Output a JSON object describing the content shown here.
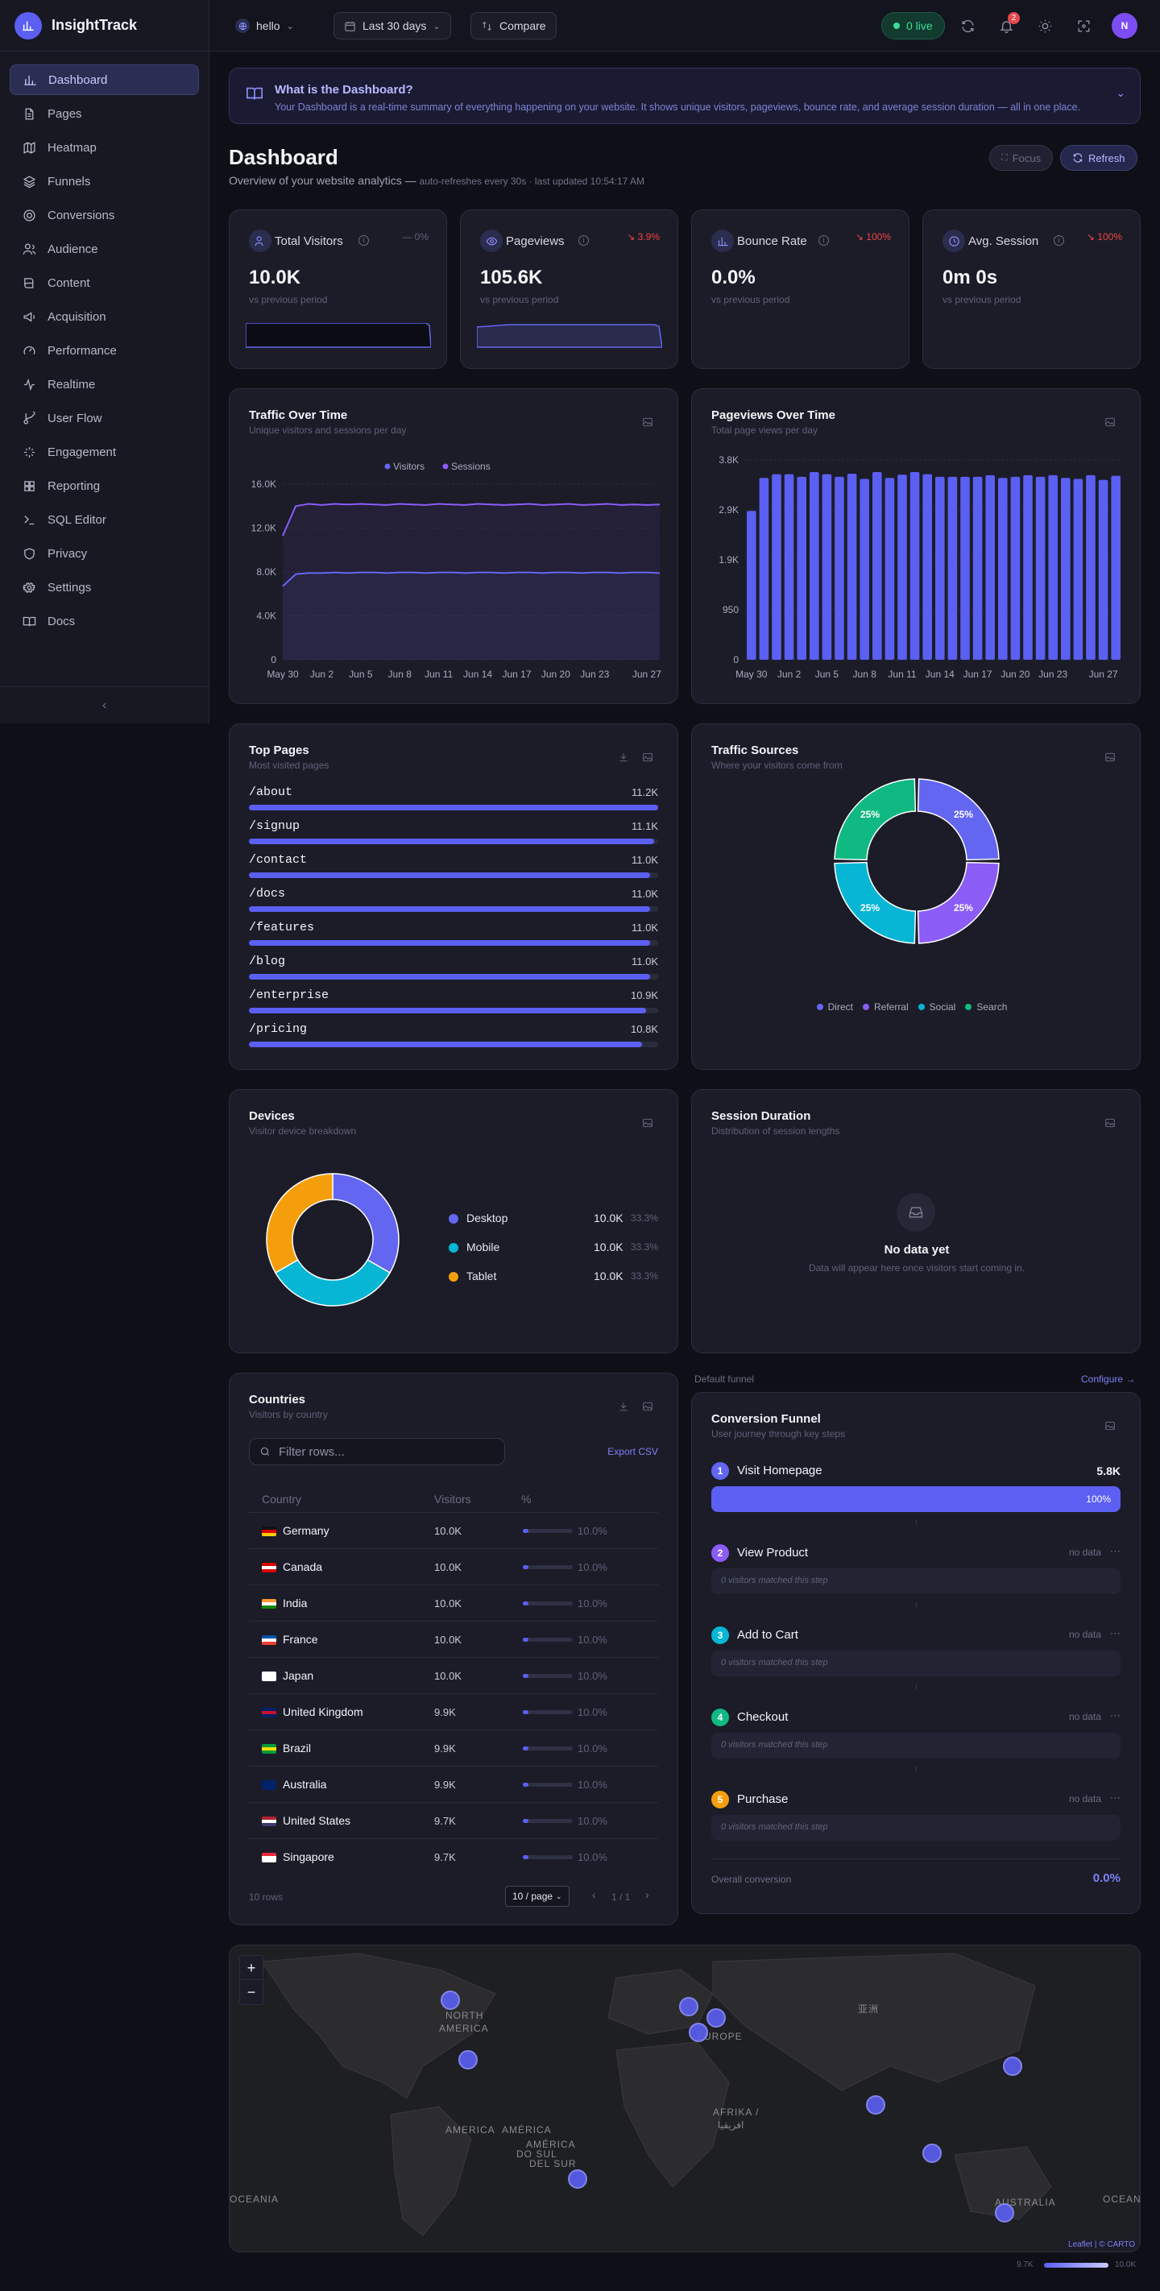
{
  "brand": {
    "name": "InsightTrack"
  },
  "sidebar": {
    "items": [
      {
        "label": "Dashboard",
        "icon": "chart-bar-icon"
      },
      {
        "label": "Pages",
        "icon": "file-icon"
      },
      {
        "label": "Heatmap",
        "icon": "map-icon"
      },
      {
        "label": "Funnels",
        "icon": "layers-icon"
      },
      {
        "label": "Conversions",
        "icon": "target-icon"
      },
      {
        "label": "Audience",
        "icon": "users-icon"
      },
      {
        "label": "Content",
        "icon": "book-icon"
      },
      {
        "label": "Acquisition",
        "icon": "megaphone-icon"
      },
      {
        "label": "Performance",
        "icon": "gauge-icon"
      },
      {
        "label": "Realtime",
        "icon": "activity-icon"
      },
      {
        "label": "User Flow",
        "icon": "branch-icon"
      },
      {
        "label": "Engagement",
        "icon": "sparkle-icon"
      },
      {
        "label": "Reporting",
        "icon": "grid-icon"
      },
      {
        "label": "SQL Editor",
        "icon": "terminal-icon"
      },
      {
        "label": "Privacy",
        "icon": "shield-icon"
      },
      {
        "label": "Settings",
        "icon": "gear-icon"
      },
      {
        "label": "Docs",
        "icon": "book-open-icon"
      }
    ],
    "collapse_label": "‹"
  },
  "topbar": {
    "site": "hello",
    "range": "Last 30 days",
    "compare": "Compare",
    "live": "0 live",
    "notifications": "2",
    "avatar": "N"
  },
  "info": {
    "title": "What is the Dashboard?",
    "text": "Your Dashboard is a real-time summary of everything happening on your website. It shows unique visitors, pageviews, bounce rate, and average session duration — all in one place."
  },
  "header": {
    "title": "Dashboard",
    "subtitle": "Overview of your website analytics —",
    "meta": "auto-refreshes every 30s · last updated 10:54:17 AM",
    "focus": "Focus",
    "refresh": "Refresh"
  },
  "stats": [
    {
      "label": "Total Visitors",
      "value": "10.0K",
      "delta": "— 0%",
      "compare": "vs previous period"
    },
    {
      "label": "Pageviews",
      "value": "105.6K",
      "delta": "↘ 3.9%",
      "compare": "vs previous period"
    },
    {
      "label": "Bounce Rate",
      "value": "0.0%",
      "delta": "↘ 100%",
      "compare": "vs previous period"
    },
    {
      "label": "Avg. Session",
      "value": "0m 0s",
      "delta": "↘ 100%",
      "compare": "vs previous period"
    }
  ],
  "charts": {
    "traffic": {
      "title": "Traffic Over Time",
      "subtitle": "Unique visitors and sessions per day"
    },
    "pageviews": {
      "title": "Pageviews Over Time",
      "subtitle": "Total page views per day"
    }
  },
  "chart_data": [
    {
      "type": "line",
      "title": "Traffic Over Time",
      "x": [
        "May 30",
        "May 31",
        "Jun 1",
        "Jun 2",
        "Jun 3",
        "Jun 4",
        "Jun 5",
        "Jun 6",
        "Jun 7",
        "Jun 8",
        "Jun 9",
        "Jun 10",
        "Jun 11",
        "Jun 12",
        "Jun 13",
        "Jun 14",
        "Jun 15",
        "Jun 16",
        "Jun 17",
        "Jun 18",
        "Jun 19",
        "Jun 20",
        "Jun 21",
        "Jun 22",
        "Jun 23",
        "Jun 24",
        "Jun 25",
        "Jun 26",
        "Jun 27",
        "Jun 28"
      ],
      "x_ticks": [
        "May 30",
        "Jun 2",
        "Jun 5",
        "Jun 8",
        "Jun 11",
        "Jun 14",
        "Jun 17",
        "Jun 20",
        "Jun 23",
        "Jun 27"
      ],
      "y_ticks": [
        "0",
        "4.0K",
        "8.0K",
        "12.0K",
        "16.0K"
      ],
      "ylim": [
        0,
        16000
      ],
      "series": [
        {
          "name": "Visitors",
          "color": "#6366f1",
          "values": [
            6700,
            7800,
            7900,
            7900,
            7950,
            7900,
            7950,
            7950,
            7900,
            7950,
            7950,
            7900,
            7950,
            7950,
            7900,
            7950,
            7950,
            7900,
            7950,
            7950,
            7900,
            7950,
            7950,
            7900,
            7950,
            7950,
            7900,
            7950,
            7950,
            7900
          ]
        },
        {
          "name": "Sessions",
          "color": "#8b5cf6",
          "values": [
            11300,
            14000,
            14200,
            14100,
            14200,
            14150,
            14200,
            14150,
            14100,
            14200,
            14150,
            14100,
            14200,
            14150,
            14100,
            14200,
            14150,
            14100,
            14150,
            14200,
            14100,
            14150,
            14200,
            14100,
            14150,
            14200,
            14100,
            14150,
            14100,
            14150
          ]
        }
      ],
      "legend": "top"
    },
    {
      "type": "bar",
      "title": "Pageviews Over Time",
      "categories": [
        "May 30",
        "May 31",
        "Jun 1",
        "Jun 2",
        "Jun 3",
        "Jun 4",
        "Jun 5",
        "Jun 6",
        "Jun 7",
        "Jun 8",
        "Jun 9",
        "Jun 10",
        "Jun 11",
        "Jun 12",
        "Jun 13",
        "Jun 14",
        "Jun 15",
        "Jun 16",
        "Jun 17",
        "Jun 18",
        "Jun 19",
        "Jun 20",
        "Jun 21",
        "Jun 22",
        "Jun 23",
        "Jun 24",
        "Jun 25",
        "Jun 26",
        "Jun 27",
        "Jun 28"
      ],
      "x_ticks": [
        "May 30",
        "Jun 2",
        "Jun 5",
        "Jun 8",
        "Jun 11",
        "Jun 14",
        "Jun 17",
        "Jun 20",
        "Jun 23",
        "Jun 27"
      ],
      "y_ticks": [
        "0",
        "950",
        "1.9K",
        "2.9K",
        "3.8K"
      ],
      "ylim": [
        0,
        3800
      ],
      "values": [
        2830,
        3460,
        3530,
        3530,
        3480,
        3570,
        3530,
        3480,
        3540,
        3440,
        3570,
        3460,
        3520,
        3570,
        3530,
        3480,
        3480,
        3480,
        3480,
        3510,
        3460,
        3480,
        3510,
        3480,
        3510,
        3460,
        3440,
        3510,
        3420,
        3500
      ],
      "color": "#5b5ff2"
    },
    {
      "type": "pie",
      "title": "Traffic Sources",
      "labels": [
        "Direct",
        "Referral",
        "Social",
        "Search"
      ],
      "values": [
        25,
        25,
        25,
        25
      ],
      "colors": [
        "#6366f1",
        "#8b5cf6",
        "#06b6d4",
        "#10b981"
      ]
    },
    {
      "type": "pie",
      "title": "Devices",
      "labels": [
        "Desktop",
        "Mobile",
        "Tablet"
      ],
      "values": [
        33.3,
        33.3,
        33.3
      ],
      "colors": [
        "#6366f1",
        "#06b6d4",
        "#f59e0b"
      ]
    }
  ],
  "top_pages": {
    "title": "Top Pages",
    "subtitle": "Most visited pages",
    "rows": [
      {
        "path": "/about",
        "value": "11.2K",
        "pct": 1.0
      },
      {
        "path": "/signup",
        "value": "11.1K",
        "pct": 0.99
      },
      {
        "path": "/contact",
        "value": "11.0K",
        "pct": 0.98
      },
      {
        "path": "/docs",
        "value": "11.0K",
        "pct": 0.98
      },
      {
        "path": "/features",
        "value": "11.0K",
        "pct": 0.98
      },
      {
        "path": "/blog",
        "value": "11.0K",
        "pct": 0.98
      },
      {
        "path": "/enterprise",
        "value": "10.9K",
        "pct": 0.97
      },
      {
        "path": "/pricing",
        "value": "10.8K",
        "pct": 0.96
      }
    ]
  },
  "sources": {
    "title": "Traffic Sources",
    "subtitle": "Where your visitors come from",
    "slice_labels": [
      "25%",
      "25%",
      "25%",
      "25%"
    ],
    "legend": [
      "Direct",
      "Referral",
      "Social",
      "Search"
    ]
  },
  "devices": {
    "title": "Devices",
    "subtitle": "Visitor device breakdown",
    "rows": [
      {
        "name": "Desktop",
        "value": "10.0K",
        "pct": "33.3%"
      },
      {
        "name": "Mobile",
        "value": "10.0K",
        "pct": "33.3%"
      },
      {
        "name": "Tablet",
        "value": "10.0K",
        "pct": "33.3%"
      }
    ]
  },
  "session": {
    "title": "Session Duration",
    "subtitle": "Distribution of session lengths",
    "empty_title": "No data yet",
    "empty_text": "Data will appear here once visitors start coming in."
  },
  "countries": {
    "title": "Countries",
    "subtitle": "Visitors by country",
    "filter_placeholder": "Filter rows...",
    "export": "Export CSV",
    "headers": [
      "Country",
      "Visitors",
      "%"
    ],
    "rows": [
      {
        "name": "Germany",
        "visitors": "10.0K",
        "pct": "10.0%",
        "flag": [
          "#111",
          "#d00",
          "#fc0"
        ]
      },
      {
        "name": "Canada",
        "visitors": "10.0K",
        "pct": "10.0%",
        "flag": [
          "#d00",
          "#fff",
          "#d00"
        ]
      },
      {
        "name": "India",
        "visitors": "10.0K",
        "pct": "10.0%",
        "flag": [
          "#f93",
          "#fff",
          "#138808"
        ]
      },
      {
        "name": "France",
        "visitors": "10.0K",
        "pct": "10.0%",
        "flag": [
          "#0055a4",
          "#fff",
          "#ef4135"
        ]
      },
      {
        "name": "Japan",
        "visitors": "10.0K",
        "pct": "10.0%",
        "flag": [
          "#fff",
          "#fff",
          "#fff"
        ]
      },
      {
        "name": "United Kingdom",
        "visitors": "9.9K",
        "pct": "10.0%",
        "flag": [
          "#012169",
          "#c8102e",
          "#012169"
        ]
      },
      {
        "name": "Brazil",
        "visitors": "9.9K",
        "pct": "10.0%",
        "flag": [
          "#009c3b",
          "#ffdf00",
          "#009c3b"
        ]
      },
      {
        "name": "Australia",
        "visitors": "9.9K",
        "pct": "10.0%",
        "flag": [
          "#012169",
          "#012169",
          "#012169"
        ]
      },
      {
        "name": "United States",
        "visitors": "9.7K",
        "pct": "10.0%",
        "flag": [
          "#b22234",
          "#fff",
          "#3c3b6e"
        ]
      },
      {
        "name": "Singapore",
        "visitors": "9.7K",
        "pct": "10.0%",
        "flag": [
          "#ed2939",
          "#fff",
          "#fff"
        ]
      }
    ],
    "rows_count": "10 rows",
    "page_size": "10 / page",
    "page": "1 / 1"
  },
  "funnel": {
    "label": "Default funnel",
    "configure": "Configure →",
    "title": "Conversion Funnel",
    "subtitle": "User journey through key steps",
    "steps": [
      {
        "n": "1",
        "name": "Visit Homepage",
        "value": "5.8K",
        "bar": "100%",
        "color": "#6366f1"
      },
      {
        "n": "2",
        "name": "View Product",
        "value": "no data",
        "empty": "0 visitors matched this step",
        "color": "#8b5cf6"
      },
      {
        "n": "3",
        "name": "Add to Cart",
        "value": "no data",
        "empty": "0 visitors matched this step",
        "color": "#06b6d4"
      },
      {
        "n": "4",
        "name": "Checkout",
        "value": "no data",
        "empty": "0 visitors matched this step",
        "color": "#10b981"
      },
      {
        "n": "5",
        "name": "Purchase",
        "value": "no data",
        "empty": "0 visitors matched this step",
        "color": "#f59e0b"
      }
    ],
    "overall_label": "Overall conversion",
    "overall_value": "0.0%"
  },
  "map": {
    "labels": [
      "NORTH",
      "AMERICA",
      "EUROPE",
      "AFRIKA /",
      "افريقيا",
      "AMÉRICA",
      "DO SUL",
      "AMÉRICA",
      "DEL SUR",
      "OCEANIA",
      "OCEANIA",
      "AUSTRALIA",
      "AMERICA",
      "亚洲"
    ],
    "attribution": "Leaflet | © CARTO",
    "scale_min": "9.7K",
    "scale_max": "10.0K",
    "zoom_in": "+",
    "zoom_out": "−"
  }
}
